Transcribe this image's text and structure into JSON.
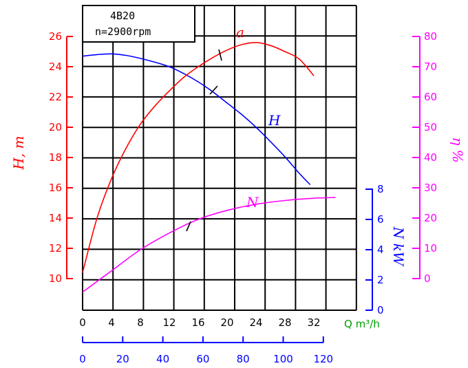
{
  "chart_data": {
    "type": "line",
    "info": {
      "model": "4B20",
      "speed": "n=2900rpm"
    },
    "colors": {
      "head": "#ff0000",
      "efficiency": "#ff00ff",
      "power": "#ff00ff",
      "power_axis": "#0000ff",
      "x_axis": "#00a000",
      "lps_axis": "#0000ff",
      "grid": "#000000"
    },
    "axes": {
      "x_q": {
        "label": "Q m³/h",
        "ticks": [
          "0",
          "4",
          "8",
          "12",
          "16",
          "20",
          "24",
          "28",
          "32"
        ],
        "range": [
          0,
          38
        ]
      },
      "x_lps": {
        "ticks": [
          "0",
          "20",
          "40",
          "60",
          "80",
          "100",
          "120"
        ]
      },
      "y_head": {
        "label": "H, m",
        "ticks": [
          "10",
          "12",
          "14",
          "16",
          "18",
          "20",
          "22",
          "24",
          "26"
        ],
        "range": [
          9,
          27
        ]
      },
      "y_eff": {
        "label": "η %",
        "ticks": [
          "0",
          "10",
          "20",
          "30",
          "40",
          "50",
          "60",
          "70",
          "80"
        ],
        "range": [
          0,
          80
        ]
      },
      "y_power": {
        "label": "N kW",
        "ticks": [
          "0",
          "2",
          "4",
          "6",
          "8"
        ],
        "range": [
          0,
          8
        ]
      }
    },
    "series": [
      {
        "name": "H",
        "axis": "head",
        "x": [
          0,
          2,
          4,
          6,
          8,
          10,
          12,
          14,
          16,
          18,
          20,
          22,
          24,
          26,
          28,
          30,
          31.5
        ],
        "y": [
          24.7,
          24.8,
          24.85,
          24.75,
          24.55,
          24.3,
          24.0,
          23.55,
          23.0,
          22.35,
          21.6,
          20.85,
          20.0,
          19.05,
          18.05,
          16.95,
          16.2
        ]
      },
      {
        "name": "η",
        "axis": "efficiency",
        "x": [
          0,
          2,
          4,
          6,
          8,
          10,
          12,
          14,
          16,
          18,
          20,
          22,
          24,
          26,
          28,
          30,
          32
        ],
        "y": [
          2,
          20,
          33,
          43,
          51,
          57,
          62,
          66.5,
          70,
          73,
          75.5,
          77.3,
          78,
          77,
          75,
          72.5,
          67
        ]
      },
      {
        "name": "N",
        "axis": "power",
        "x": [
          0,
          4,
          8,
          12,
          16,
          20,
          24,
          28,
          32,
          35
        ],
        "y": [
          1.2,
          2.6,
          4.0,
          5.1,
          6.0,
          6.6,
          7.0,
          7.25,
          7.4,
          7.45
        ]
      }
    ]
  }
}
